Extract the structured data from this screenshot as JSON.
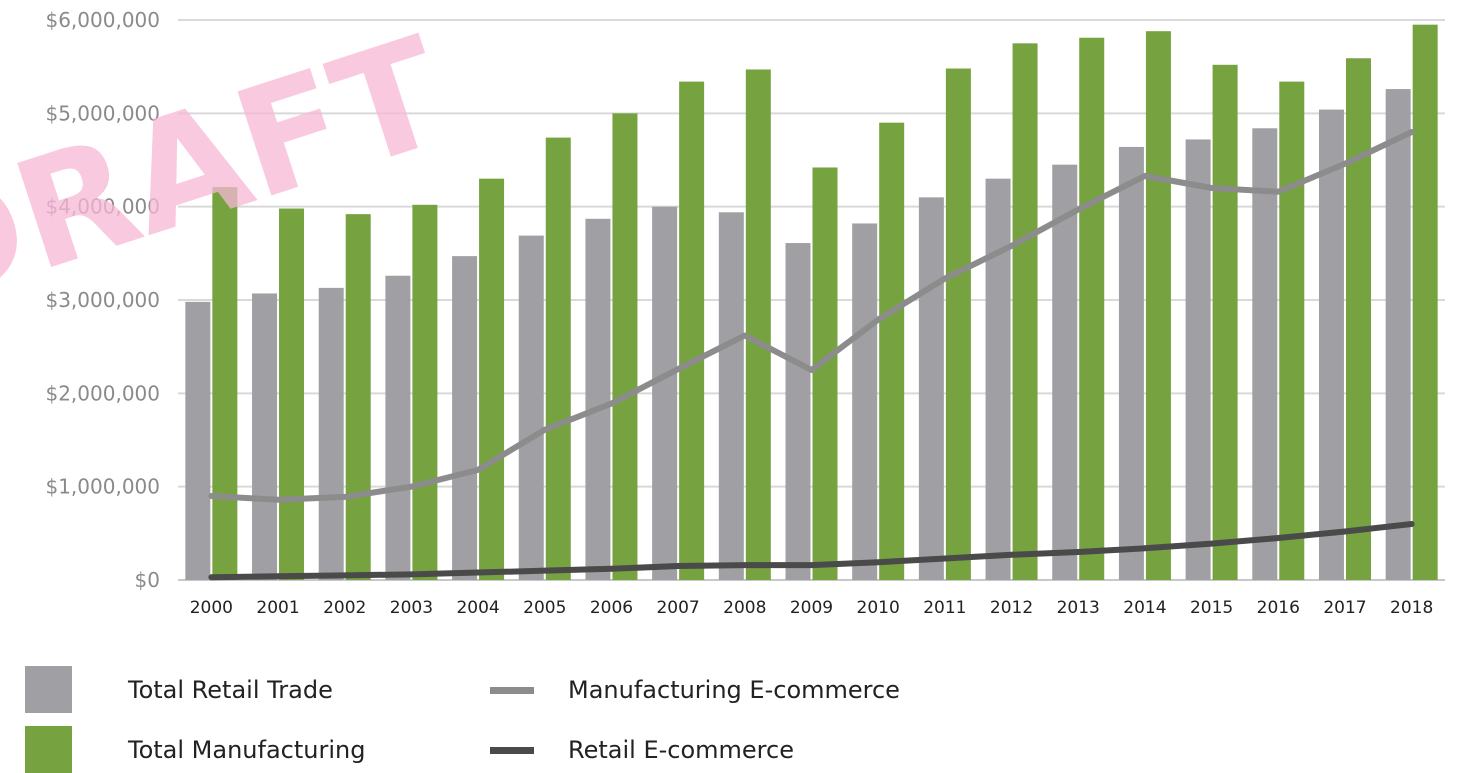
{
  "watermark_text": "DRAFT",
  "chart_data": {
    "type": "bar",
    "categories": [
      "2000",
      "2001",
      "2002",
      "2003",
      "2004",
      "2005",
      "2006",
      "2007",
      "2008",
      "2009",
      "2010",
      "2011",
      "2012",
      "2013",
      "2014",
      "2015",
      "2016",
      "2017",
      "2018"
    ],
    "series": [
      {
        "name": "Total Retail Trade",
        "kind": "bar",
        "color": "#a0a0a4",
        "values": [
          2980000,
          3070000,
          3130000,
          3260000,
          3470000,
          3690000,
          3870000,
          4000000,
          3940000,
          3610000,
          3820000,
          4100000,
          4300000,
          4450000,
          4640000,
          4720000,
          4840000,
          5040000,
          5260000
        ]
      },
      {
        "name": "Total Manufacturing",
        "kind": "bar",
        "color": "#76a23f",
        "values": [
          4210000,
          3980000,
          3920000,
          4020000,
          4300000,
          4740000,
          5000000,
          5340000,
          5470000,
          4420000,
          4900000,
          5480000,
          5750000,
          5810000,
          5880000,
          5520000,
          5340000,
          5590000,
          5950000
        ]
      },
      {
        "name": "Manufacturing E-commerce",
        "kind": "line",
        "color": "#8c8c8c",
        "values": [
          900000,
          860000,
          890000,
          1000000,
          1180000,
          1610000,
          1890000,
          2260000,
          2620000,
          2250000,
          2790000,
          3230000,
          3580000,
          3970000,
          4330000,
          4200000,
          4160000,
          4460000,
          4800000
        ]
      },
      {
        "name": "Retail E-commerce",
        "kind": "line",
        "color": "#4a4a4a",
        "values": [
          30000,
          40000,
          50000,
          60000,
          80000,
          100000,
          120000,
          150000,
          160000,
          160000,
          190000,
          230000,
          270000,
          300000,
          340000,
          390000,
          450000,
          520000,
          600000
        ]
      }
    ],
    "y_ticks": [
      "$0",
      "$1,000,000",
      "$2,000,000",
      "$3,000,000",
      "$4,000,000",
      "$5,000,000",
      "$6,000,000"
    ],
    "ylim": [
      0,
      6000000
    ],
    "grid": true,
    "legend_placement": "bottom-left"
  },
  "legend": {
    "retail_label": "Total Retail Trade",
    "manufacturing_label": "Total Manufacturing",
    "mfg_ecom_label": "Manufacturing E-commerce",
    "retail_ecom_label": "Retail E-commerce"
  }
}
